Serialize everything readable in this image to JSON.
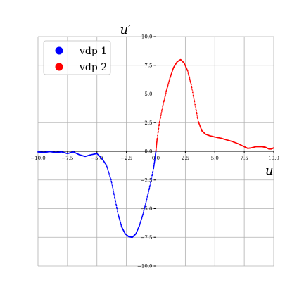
{
  "chart_data": {
    "type": "scatter",
    "xlabel": "u",
    "ylabel": "u′",
    "xlim": [
      -10,
      10
    ],
    "ylim": [
      -10,
      10
    ],
    "xticks": [
      -10,
      -7.5,
      -5,
      -2.5,
      0,
      2.5,
      5,
      7.5,
      10
    ],
    "yticks": [
      -10,
      -7.5,
      -5,
      -2.5,
      0,
      2.5,
      5,
      7.5,
      10
    ],
    "xtick_labels": [
      "−10.0",
      "−7.5",
      "−5.0",
      "−2.5",
      "0.0",
      "2.5",
      "5.0",
      "7.5",
      "10.0"
    ],
    "ytick_labels": [
      "−10.0",
      "−7.5",
      "−5.0",
      "−2.5",
      "0.0",
      "2.5",
      "5.0",
      "7.5",
      "10.0"
    ],
    "grid": true,
    "legend_position": "top-left",
    "series": [
      {
        "name": "vdp 1",
        "color": "#0000ff",
        "points": [
          [
            -10,
            -0.05
          ],
          [
            -9.5,
            -0.1
          ],
          [
            -9,
            -0.03
          ],
          [
            -8.5,
            -0.1
          ],
          [
            -8,
            -0.05
          ],
          [
            -7.5,
            -0.2
          ],
          [
            -7,
            -0.05
          ],
          [
            -6.5,
            -0.3
          ],
          [
            -6,
            -0.45
          ],
          [
            -5.5,
            -0.3
          ],
          [
            -5,
            -0.2
          ],
          [
            -4.6,
            -0.6
          ],
          [
            -4.2,
            -1.2
          ],
          [
            -3.8,
            -2.5
          ],
          [
            -3.5,
            -4
          ],
          [
            -3.2,
            -5.5
          ],
          [
            -2.9,
            -6.6
          ],
          [
            -2.6,
            -7.2
          ],
          [
            -2.3,
            -7.45
          ],
          [
            -2.0,
            -7.5
          ],
          [
            -1.7,
            -7.2
          ],
          [
            -1.4,
            -6.5
          ],
          [
            -1.1,
            -5.5
          ],
          [
            -0.8,
            -4.3
          ],
          [
            -0.5,
            -3.0
          ],
          [
            -0.2,
            -1.5
          ],
          [
            -0.05,
            -0.5
          ],
          [
            0,
            0
          ]
        ]
      },
      {
        "name": "vdp 2",
        "color": "#ff0000",
        "points": [
          [
            0,
            0
          ],
          [
            0.1,
            1.0
          ],
          [
            0.3,
            2.5
          ],
          [
            0.6,
            4.0
          ],
          [
            0.9,
            5.3
          ],
          [
            1.2,
            6.4
          ],
          [
            1.5,
            7.3
          ],
          [
            1.8,
            7.8
          ],
          [
            2.1,
            8.0
          ],
          [
            2.4,
            7.7
          ],
          [
            2.7,
            7.0
          ],
          [
            3.0,
            5.8
          ],
          [
            3.3,
            4.2
          ],
          [
            3.6,
            2.6
          ],
          [
            3.9,
            1.8
          ],
          [
            4.2,
            1.5
          ],
          [
            4.6,
            1.35
          ],
          [
            5.0,
            1.25
          ],
          [
            5.5,
            1.15
          ],
          [
            6.0,
            1.0
          ],
          [
            6.5,
            0.85
          ],
          [
            7.0,
            0.65
          ],
          [
            7.5,
            0.4
          ],
          [
            7.8,
            0.25
          ],
          [
            8.1,
            0.3
          ],
          [
            8.5,
            0.4
          ],
          [
            9.0,
            0.4
          ],
          [
            9.3,
            0.35
          ],
          [
            9.6,
            0.2
          ],
          [
            9.8,
            0.2
          ],
          [
            10,
            0.3
          ]
        ]
      }
    ]
  }
}
